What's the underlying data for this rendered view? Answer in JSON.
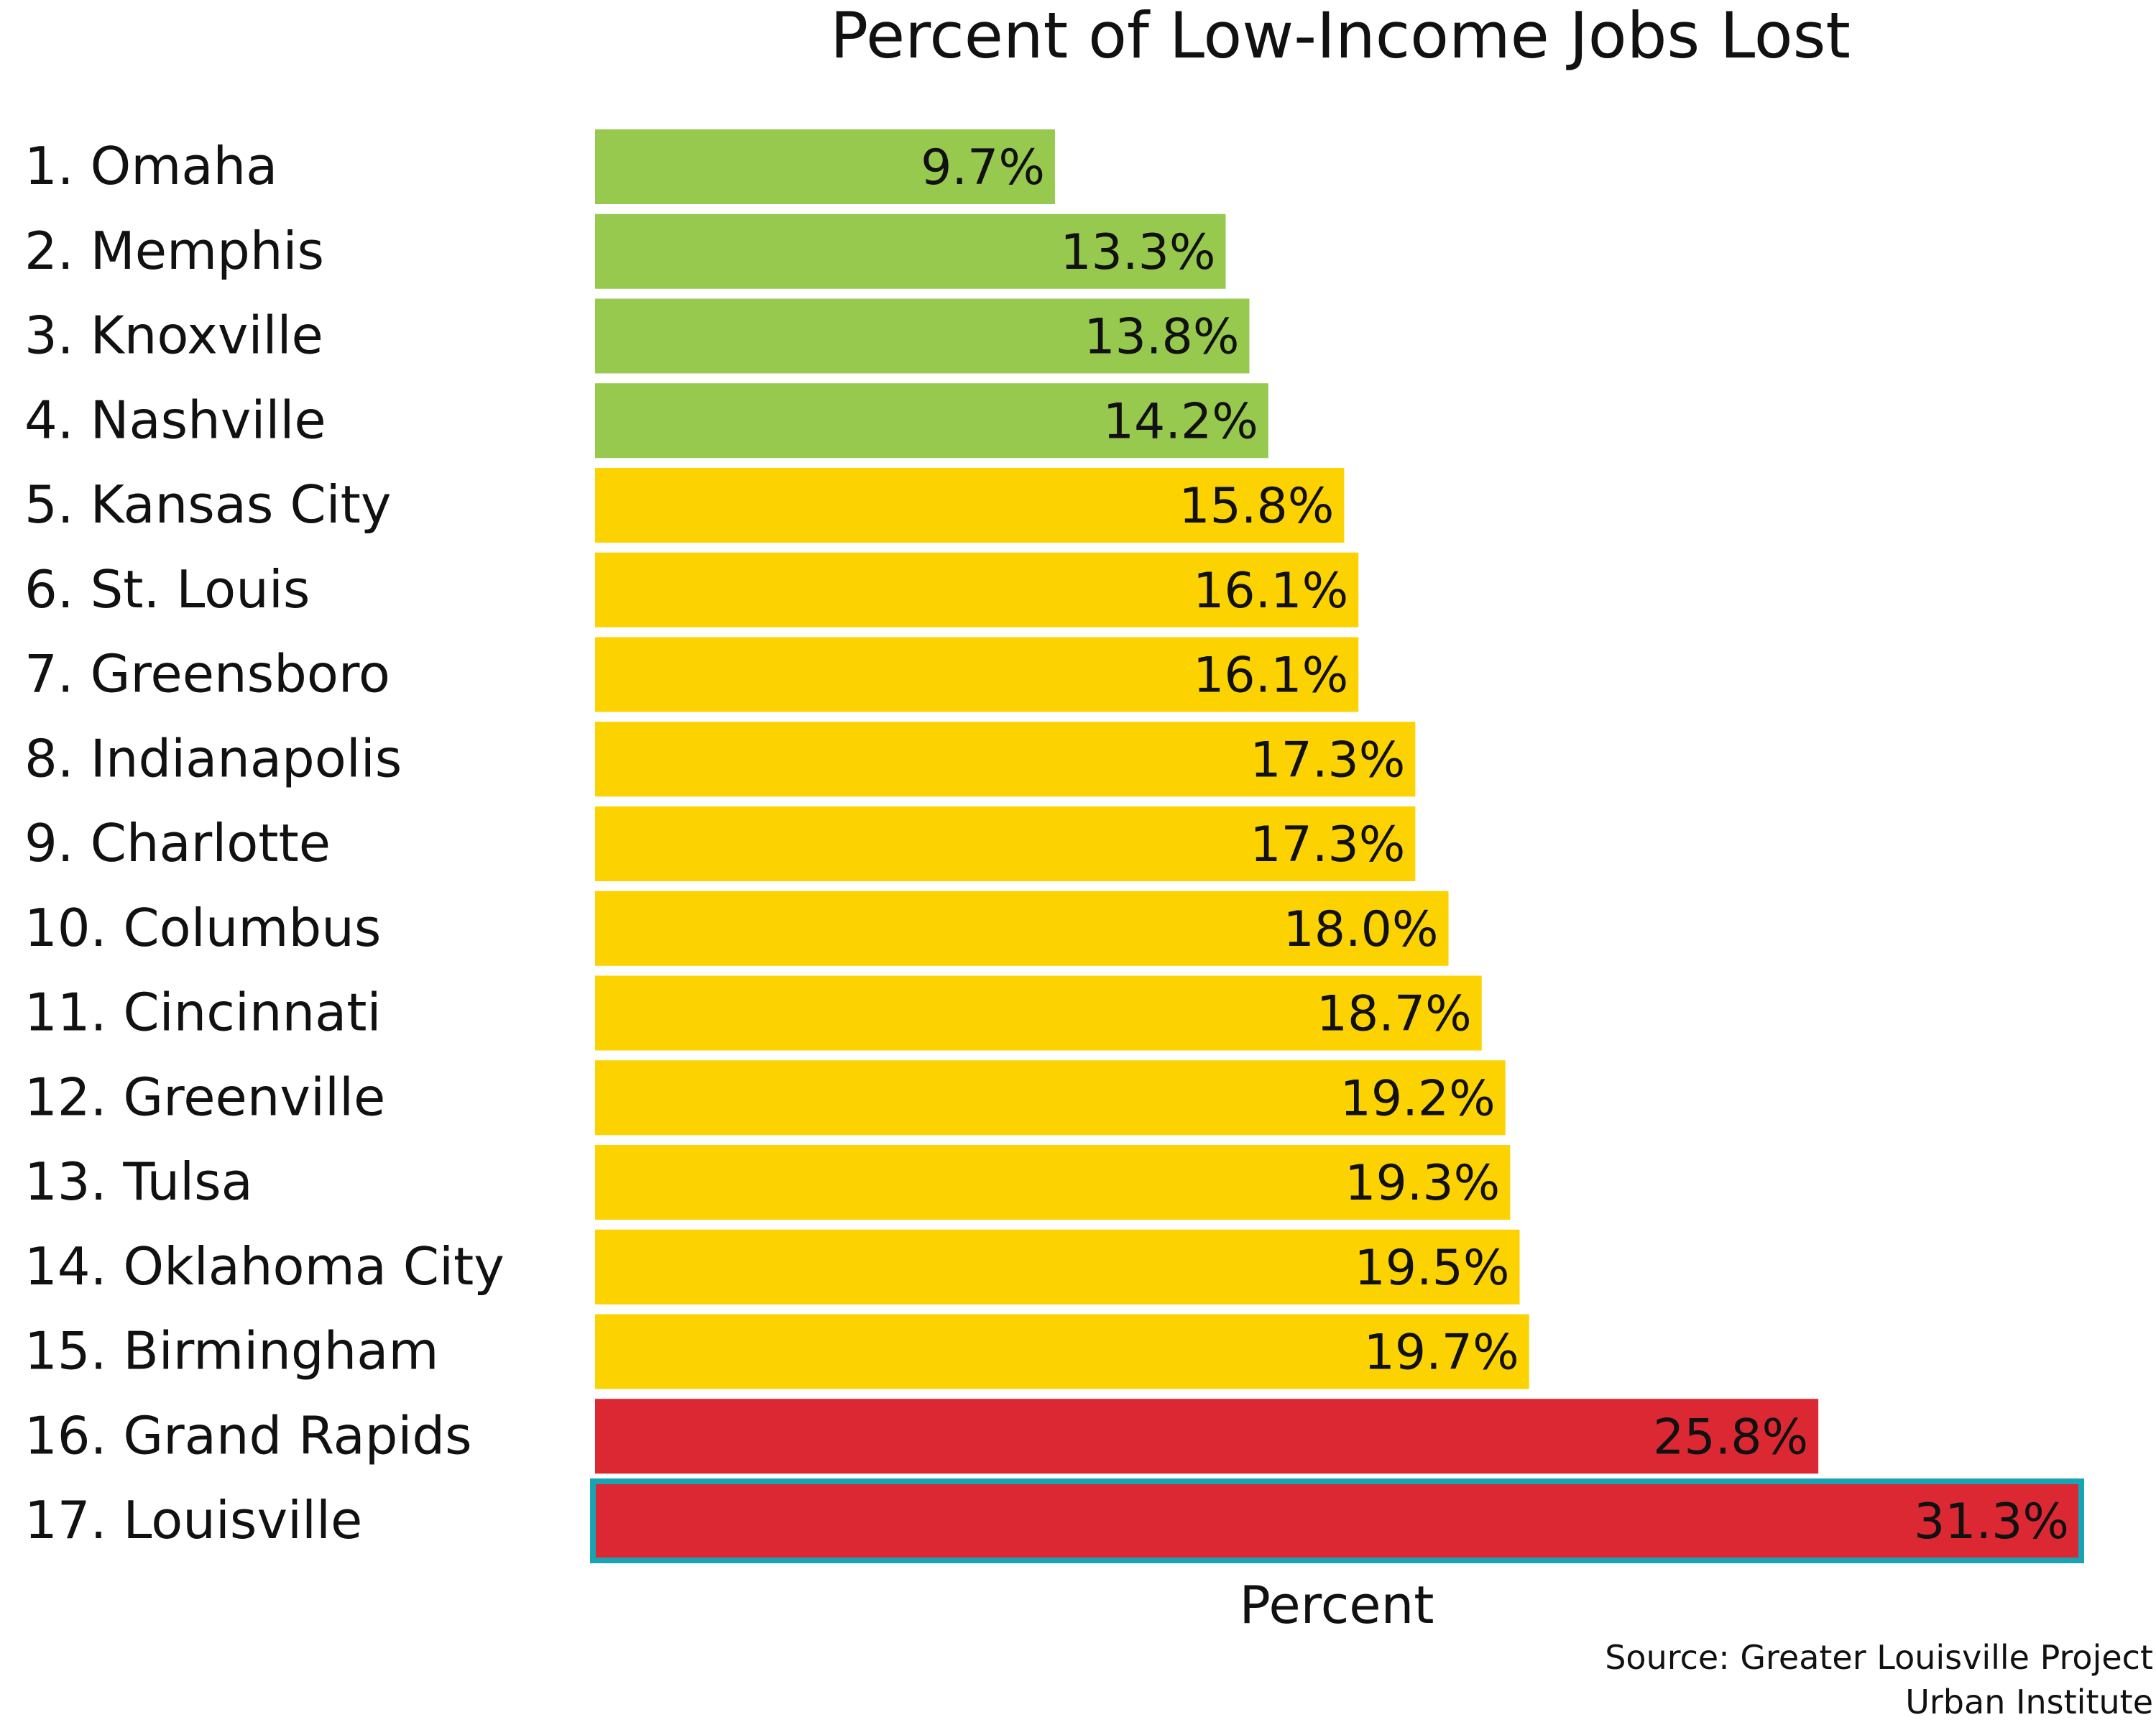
{
  "chart_data": {
    "type": "bar",
    "orientation": "horizontal",
    "title": "Percent of Low-Income Jobs Lost",
    "xlabel": "Percent",
    "ylabel": "",
    "xlim": [
      0,
      31.3
    ],
    "grid": false,
    "legend": "none",
    "categories": [
      "1. Omaha",
      "2. Memphis",
      "3. Knoxville",
      "4. Nashville",
      "5. Kansas City",
      "6. St. Louis",
      "7. Greensboro",
      "8. Indianapolis",
      "9. Charlotte",
      "10. Columbus",
      "11. Cincinnati",
      "12. Greenville",
      "13. Tulsa",
      "14. Oklahoma City",
      "15. Birmingham",
      "16. Grand Rapids",
      "17. Louisville"
    ],
    "values": [
      9.7,
      13.3,
      13.8,
      14.2,
      15.8,
      16.1,
      16.1,
      17.3,
      17.3,
      18.0,
      18.7,
      19.2,
      19.3,
      19.5,
      19.7,
      25.8,
      31.3
    ],
    "value_labels": [
      "9.7%",
      "13.3%",
      "13.8%",
      "14.2%",
      "15.8%",
      "16.1%",
      "16.1%",
      "17.3%",
      "17.3%",
      "18.0%",
      "18.7%",
      "19.2%",
      "19.3%",
      "19.5%",
      "19.7%",
      "25.8%",
      "31.3%"
    ],
    "bar_colors": [
      "#97c94f",
      "#97c94f",
      "#97c94f",
      "#97c94f",
      "#fcd200",
      "#fcd200",
      "#fcd200",
      "#fcd200",
      "#fcd200",
      "#fcd200",
      "#fcd200",
      "#fcd200",
      "#fcd200",
      "#fcd200",
      "#fcd200",
      "#dc2833",
      "#dc2833"
    ],
    "highlight": {
      "category": "17. Louisville",
      "label_color": "#19a4b3",
      "outline_color": "#19a4b3"
    },
    "source": [
      "Source: Greater Louisville Project",
      "Urban Institute"
    ]
  }
}
